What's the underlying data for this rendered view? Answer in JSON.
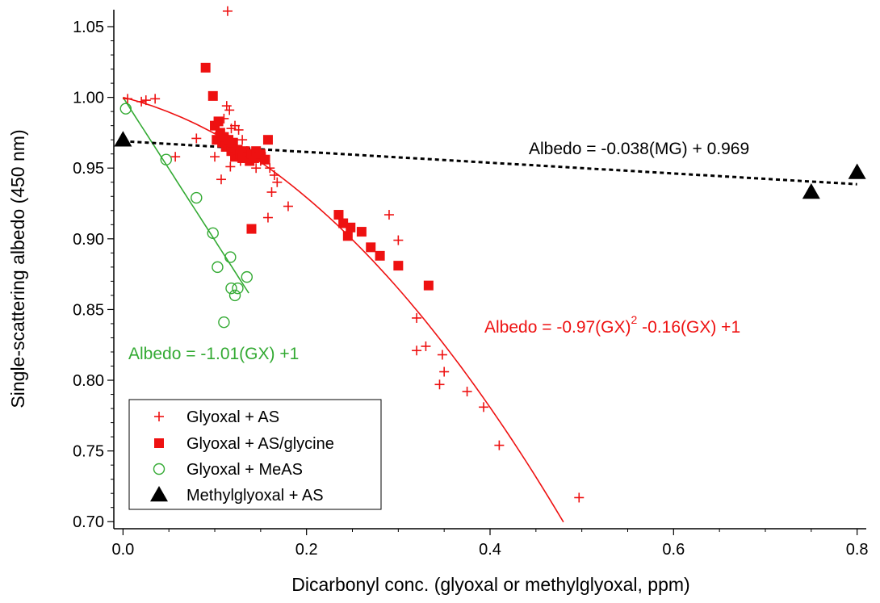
{
  "chart_data": {
    "type": "scatter",
    "xlabel": "Dicarbonyl conc. (glyoxal or methylglyoxal, ppm)",
    "ylabel": "Single-scattering albedo (450 nm)",
    "xlim": [
      -0.01,
      0.81
    ],
    "ylim": [
      0.695,
      1.062
    ],
    "x_ticks": [
      "0.0",
      "0.2",
      "0.4",
      "0.6",
      "0.8"
    ],
    "y_ticks": [
      "0.70",
      "0.75",
      "0.80",
      "0.85",
      "0.90",
      "0.95",
      "1.00",
      "1.05"
    ],
    "grid": false,
    "legend_position": "bottom-left",
    "series": [
      {
        "name": "Glyoxal + AS",
        "marker": "plus",
        "color": "#ee1111",
        "points": [
          [
            0.005,
            0.999
          ],
          [
            0.02,
            0.997
          ],
          [
            0.025,
            0.998
          ],
          [
            0.035,
            0.999
          ],
          [
            0.057,
            0.958
          ],
          [
            0.08,
            0.971
          ],
          [
            0.1,
            0.958
          ],
          [
            0.105,
            0.975
          ],
          [
            0.107,
            0.942
          ],
          [
            0.11,
            0.985
          ],
          [
            0.112,
            0.972
          ],
          [
            0.113,
            0.994
          ],
          [
            0.114,
            1.061
          ],
          [
            0.115,
            0.97
          ],
          [
            0.116,
            0.991
          ],
          [
            0.117,
            0.951
          ],
          [
            0.118,
            0.978
          ],
          [
            0.12,
            0.965
          ],
          [
            0.122,
            0.98
          ],
          [
            0.124,
            0.96
          ],
          [
            0.126,
            0.977
          ],
          [
            0.128,
            0.955
          ],
          [
            0.13,
            0.97
          ],
          [
            0.135,
            0.962
          ],
          [
            0.14,
            0.96
          ],
          [
            0.145,
            0.95
          ],
          [
            0.15,
            0.955
          ],
          [
            0.155,
            0.958
          ],
          [
            0.16,
            0.95
          ],
          [
            0.158,
            0.915
          ],
          [
            0.162,
            0.933
          ],
          [
            0.165,
            0.945
          ],
          [
            0.168,
            0.94
          ],
          [
            0.18,
            0.923
          ],
          [
            0.29,
            0.917
          ],
          [
            0.3,
            0.899
          ],
          [
            0.32,
            0.844
          ],
          [
            0.32,
            0.821
          ],
          [
            0.33,
            0.824
          ],
          [
            0.345,
            0.797
          ],
          [
            0.348,
            0.818
          ],
          [
            0.35,
            0.806
          ],
          [
            0.375,
            0.792
          ],
          [
            0.393,
            0.781
          ],
          [
            0.41,
            0.754
          ],
          [
            0.497,
            0.717
          ]
        ]
      },
      {
        "name": "Glyoxal + AS/glycine",
        "marker": "square",
        "color": "#ee1111",
        "points": [
          [
            0.09,
            1.021
          ],
          [
            0.098,
            1.001
          ],
          [
            0.1,
            0.98
          ],
          [
            0.102,
            0.97
          ],
          [
            0.104,
            0.983
          ],
          [
            0.106,
            0.975
          ],
          [
            0.108,
            0.968
          ],
          [
            0.11,
            0.972
          ],
          [
            0.112,
            0.965
          ],
          [
            0.115,
            0.97
          ],
          [
            0.118,
            0.962
          ],
          [
            0.12,
            0.968
          ],
          [
            0.122,
            0.958
          ],
          [
            0.125,
            0.963
          ],
          [
            0.128,
            0.96
          ],
          [
            0.13,
            0.957
          ],
          [
            0.133,
            0.962
          ],
          [
            0.136,
            0.958
          ],
          [
            0.138,
            0.955
          ],
          [
            0.14,
            0.96
          ],
          [
            0.143,
            0.957
          ],
          [
            0.145,
            0.962
          ],
          [
            0.148,
            0.958
          ],
          [
            0.15,
            0.96
          ],
          [
            0.155,
            0.956
          ],
          [
            0.158,
            0.97
          ],
          [
            0.14,
            0.907
          ],
          [
            0.235,
            0.917
          ],
          [
            0.24,
            0.911
          ],
          [
            0.245,
            0.902
          ],
          [
            0.248,
            0.908
          ],
          [
            0.26,
            0.905
          ],
          [
            0.27,
            0.894
          ],
          [
            0.28,
            0.888
          ],
          [
            0.3,
            0.881
          ],
          [
            0.333,
            0.867
          ]
        ]
      },
      {
        "name": "Glyoxal + MeAS",
        "marker": "circle-open",
        "color": "#33aa33",
        "points": [
          [
            0.003,
            0.992
          ],
          [
            0.047,
            0.956
          ],
          [
            0.08,
            0.929
          ],
          [
            0.098,
            0.904
          ],
          [
            0.103,
            0.88
          ],
          [
            0.11,
            0.841
          ],
          [
            0.117,
            0.887
          ],
          [
            0.118,
            0.865
          ],
          [
            0.122,
            0.86
          ],
          [
            0.125,
            0.865
          ],
          [
            0.135,
            0.873
          ]
        ]
      },
      {
        "name": "Methylglyoxal + AS",
        "marker": "triangle",
        "color": "#000000",
        "points": [
          [
            0.0,
            0.97
          ],
          [
            0.75,
            0.933
          ],
          [
            0.8,
            0.947
          ]
        ]
      }
    ],
    "fits": [
      {
        "label": "Albedo = -1.01(GX) +1",
        "color": "#33aa33",
        "style": "solid",
        "coefs": [
          1,
          -1.01,
          0
        ],
        "x_range": [
          0,
          0.137
        ]
      },
      {
        "label_parts": [
          "Albedo = -0.97(GX)",
          "2",
          " -0.16(GX) +1"
        ],
        "color": "#ee1111",
        "style": "solid",
        "coefs": [
          1,
          -0.16,
          -0.97
        ],
        "x_range": [
          0,
          0.48
        ]
      },
      {
        "label": "Albedo = -0.038(MG) + 0.969",
        "color": "#000000",
        "style": "dotted",
        "coefs": [
          0.969,
          -0.038,
          0
        ],
        "x_range": [
          0,
          0.8
        ]
      }
    ]
  }
}
